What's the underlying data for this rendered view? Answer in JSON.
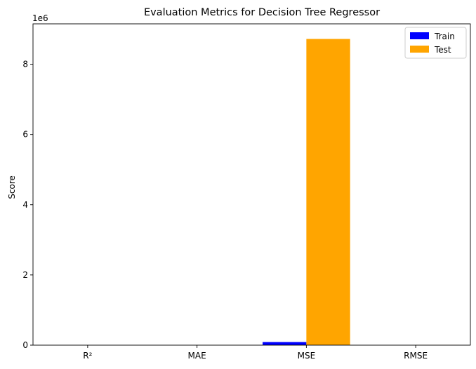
{
  "chart_data": {
    "type": "bar",
    "title": "Evaluation Metrics for Decision Tree Regressor",
    "xlabel": "",
    "ylabel": "Score",
    "categories": [
      "R²",
      "MAE",
      "MSE",
      "RMSE"
    ],
    "series": [
      {
        "name": "Train",
        "color": "#0000ff",
        "values": [
          0.998,
          52,
          88000,
          297
        ]
      },
      {
        "name": "Test",
        "color": "#ffa500",
        "values": [
          0.79,
          1650,
          8720000,
          2953
        ]
      }
    ],
    "ylim": [
      0,
      9150000
    ],
    "yticks": [
      0,
      2000000,
      4000000,
      6000000,
      8000000
    ],
    "ytick_labels": [
      "0",
      "2",
      "4",
      "6",
      "8"
    ],
    "y_offset_label": "1e6",
    "grid": false,
    "legend_position": "top-right"
  }
}
